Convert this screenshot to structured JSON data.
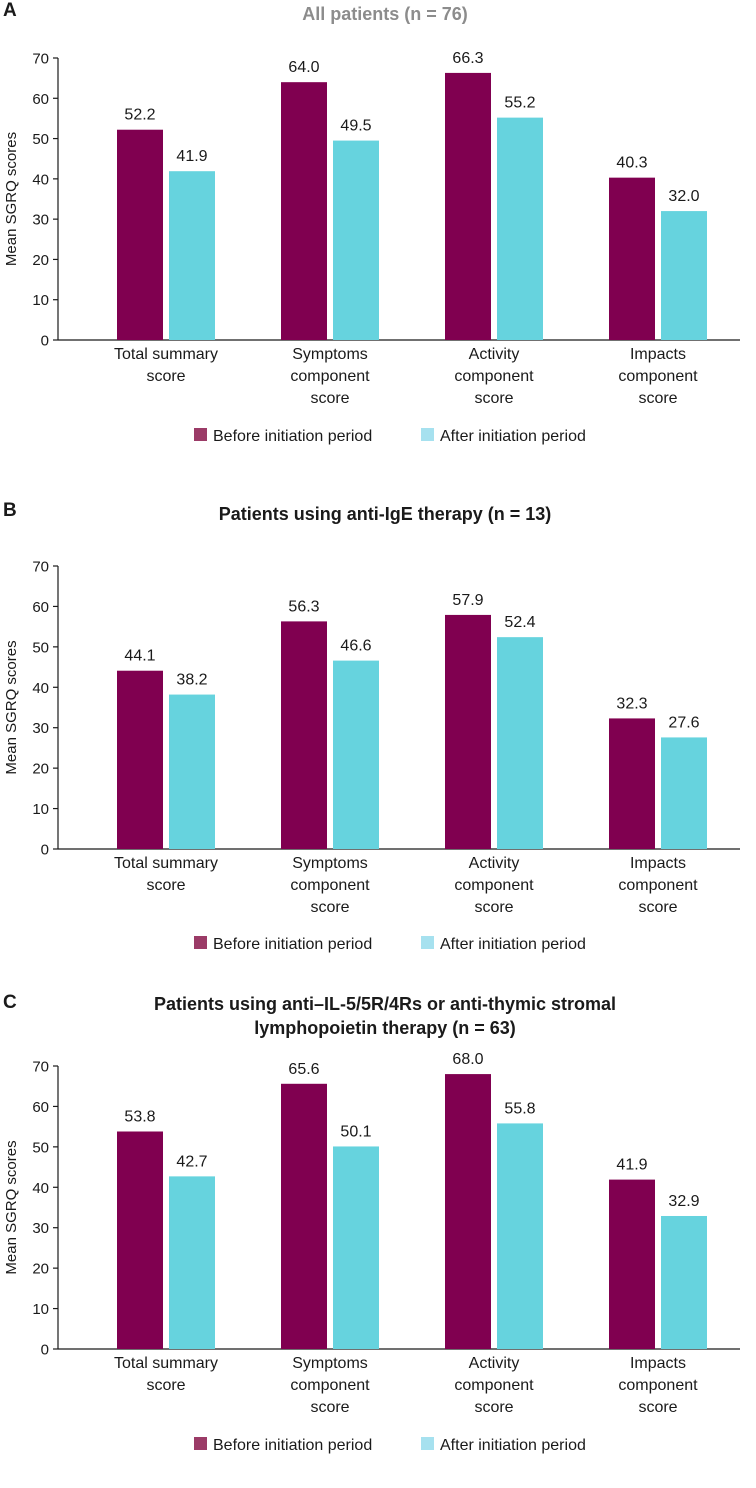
{
  "colors": {
    "before": "#800050",
    "after": "#66d3de",
    "legend_before": "#9b3b67",
    "legend_after": "#a6e1ef",
    "axis": "#1a1a1a",
    "title_gray": "#8c8c8c"
  },
  "categories": [
    [
      "Total summary",
      "score"
    ],
    [
      "Symptoms",
      "component",
      "score"
    ],
    [
      "Activity",
      "component",
      "score"
    ],
    [
      "Impacts",
      "component",
      "score"
    ]
  ],
  "legend": {
    "before": "Before initiation period",
    "after": "After initiation period"
  },
  "chart_data": [
    {
      "type": "bar",
      "panel": "A",
      "title": "All patients (n = 76)",
      "ylabel": "Mean SGRQ scores",
      "ylim": [
        0,
        70
      ],
      "yticks": [
        0,
        10,
        20,
        30,
        40,
        50,
        60,
        70
      ],
      "categories": [
        "Total summary score",
        "Symptoms component score",
        "Activity component score",
        "Impacts component score"
      ],
      "series": [
        {
          "name": "Before initiation period",
          "values": [
            52.2,
            64.0,
            66.3,
            40.3
          ],
          "labels": [
            "52.2",
            "64.0",
            "66.3",
            "40.3"
          ]
        },
        {
          "name": "After initiation period",
          "values": [
            41.9,
            49.5,
            55.2,
            32.0
          ],
          "labels": [
            "41.9",
            "49.5",
            "55.2",
            "32.0"
          ]
        }
      ]
    },
    {
      "type": "bar",
      "panel": "B",
      "title": "Patients using anti-IgE therapy (n = 13)",
      "ylabel": "Mean SGRQ scores",
      "ylim": [
        0,
        70
      ],
      "yticks": [
        0,
        10,
        20,
        30,
        40,
        50,
        60,
        70
      ],
      "categories": [
        "Total summary score",
        "Symptoms component score",
        "Activity component score",
        "Impacts component score"
      ],
      "series": [
        {
          "name": "Before initiation period",
          "values": [
            44.1,
            56.3,
            57.9,
            32.3
          ],
          "labels": [
            "44.1",
            "56.3",
            "57.9",
            "32.3"
          ]
        },
        {
          "name": "After initiation period",
          "values": [
            38.2,
            46.6,
            52.4,
            27.6
          ],
          "labels": [
            "38.2",
            "46.6",
            "52.4",
            "27.6"
          ]
        }
      ]
    },
    {
      "type": "bar",
      "panel": "C",
      "title": "Patients using anti–IL-5/5R/4Rs or anti-thymic stromal lymphopoietin therapy (n = 63)",
      "title_lines": [
        "Patients using anti–IL-5/5R/4Rs or anti-thymic stromal",
        "lymphopoietin therapy (n = 63)"
      ],
      "ylabel": "Mean SGRQ scores",
      "ylim": [
        0,
        70
      ],
      "yticks": [
        0,
        10,
        20,
        30,
        40,
        50,
        60,
        70
      ],
      "categories": [
        "Total summary score",
        "Symptoms component score",
        "Activity component score",
        "Impacts component score"
      ],
      "series": [
        {
          "name": "Before initiation period",
          "values": [
            53.8,
            65.6,
            68.0,
            41.9
          ],
          "labels": [
            "53.8",
            "65.6",
            "68.0",
            "41.9"
          ]
        },
        {
          "name": "After initiation period",
          "values": [
            42.7,
            50.1,
            55.8,
            32.9
          ],
          "labels": [
            "42.7",
            "50.1",
            "55.8",
            "32.9"
          ]
        }
      ]
    }
  ]
}
